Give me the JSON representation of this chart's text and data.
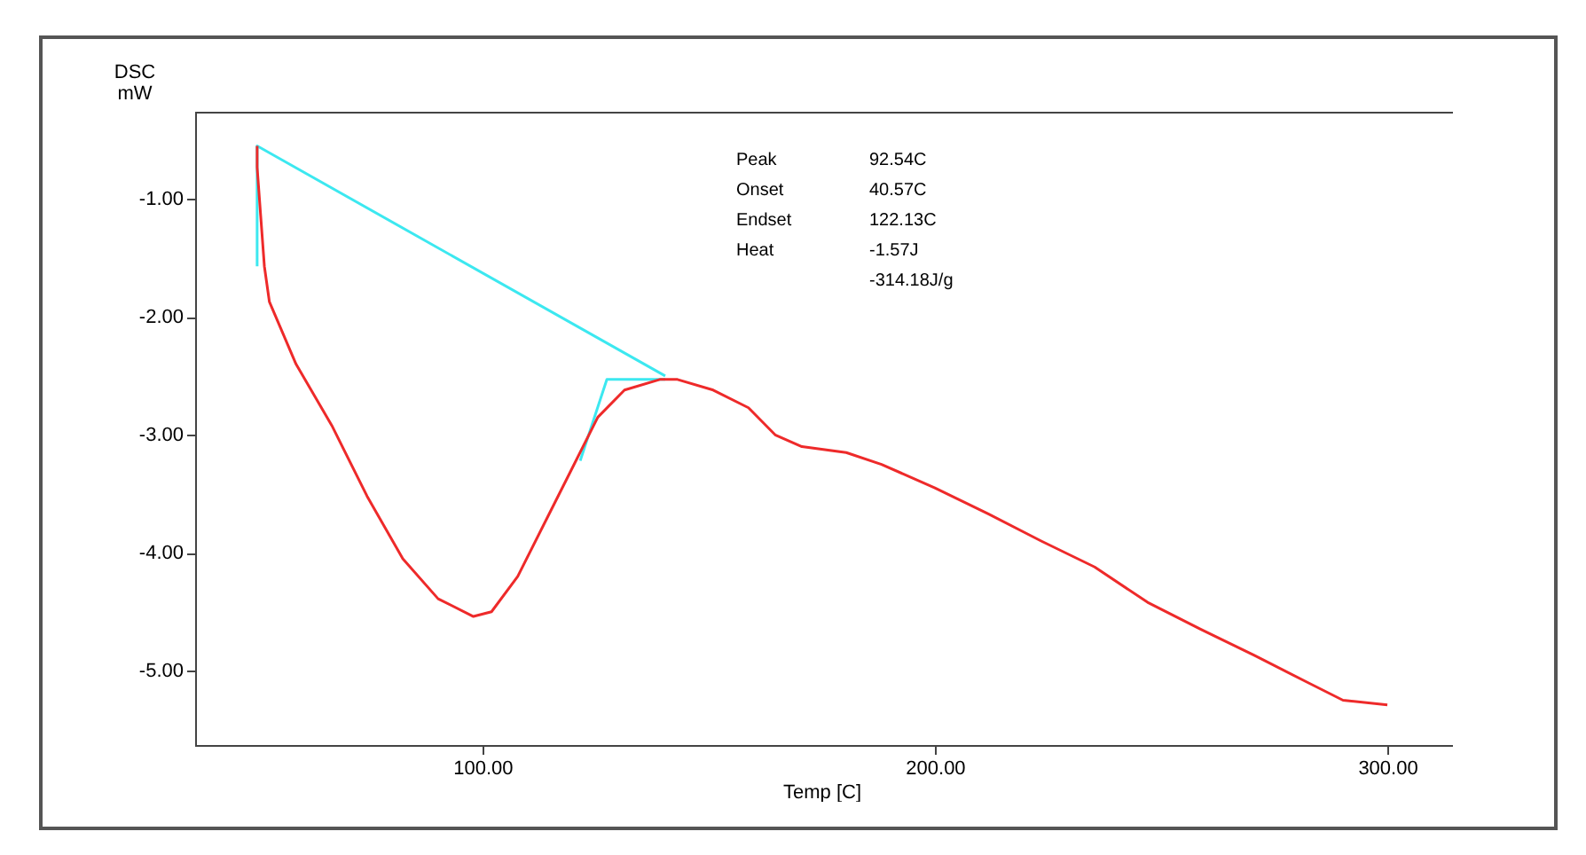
{
  "chart_data": {
    "type": "line",
    "xlabel": "Temp [C]",
    "ylabel": "DSC\nmW",
    "xlim": [
      36.5,
      314.5
    ],
    "ylim": [
      -5.63,
      -0.26
    ],
    "xticks": [
      {
        "value": 100,
        "label": "100.00"
      },
      {
        "value": 200,
        "label": "200.00"
      },
      {
        "value": 300,
        "label": "300.00"
      }
    ],
    "yticks": [
      {
        "value": -1,
        "label": "-1.00"
      },
      {
        "value": -2,
        "label": "-2.00"
      },
      {
        "value": -3,
        "label": "-3.00"
      },
      {
        "value": -4,
        "label": "-4.00"
      },
      {
        "value": -5,
        "label": "-5.00"
      }
    ],
    "grid": false,
    "legend": false,
    "series": [
      {
        "color": "#ee2a2a",
        "x": [
          50.2,
          50.2,
          51.8,
          52.9,
          58.8,
          66.7,
          74.5,
          82.4,
          90.2,
          98.0,
          102,
          107.8,
          113.7,
          119.6,
          125.5,
          131.4,
          139.2,
          143.1,
          151,
          158.8,
          164.7,
          170.6,
          180.4,
          188.2,
          200,
          211.8,
          223.5,
          235.3,
          247,
          258.8,
          270.6,
          282.4,
          290.2,
          300
        ],
        "values": [
          -0.55,
          -0.73,
          -1.57,
          -1.87,
          -2.4,
          -2.92,
          -3.52,
          -4.05,
          -4.39,
          -4.54,
          -4.5,
          -4.2,
          -3.75,
          -3.3,
          -2.85,
          -2.62,
          -2.53,
          -2.53,
          -2.62,
          -2.77,
          -3.0,
          -3.1,
          -3.15,
          -3.25,
          -3.45,
          -3.67,
          -3.9,
          -4.12,
          -4.42,
          -4.65,
          -4.87,
          -5.1,
          -5.25,
          -5.29
        ]
      },
      {
        "color": "#3ce8f0",
        "x": [
          50.2,
          50.2,
          140.4
        ],
        "values": [
          -1.57,
          -0.55,
          -2.5
        ]
      },
      {
        "color": "#3ce8f0",
        "x": [
          121.6,
          127.5,
          140.4
        ],
        "values": [
          -3.22,
          -2.53,
          -2.53
        ]
      }
    ],
    "annotations": [
      "Peak",
      "92.54C",
      "Onset",
      "40.57C",
      "Endset",
      "122.13C",
      "Heat",
      "-1.57J",
      "-314.18J/g"
    ]
  }
}
